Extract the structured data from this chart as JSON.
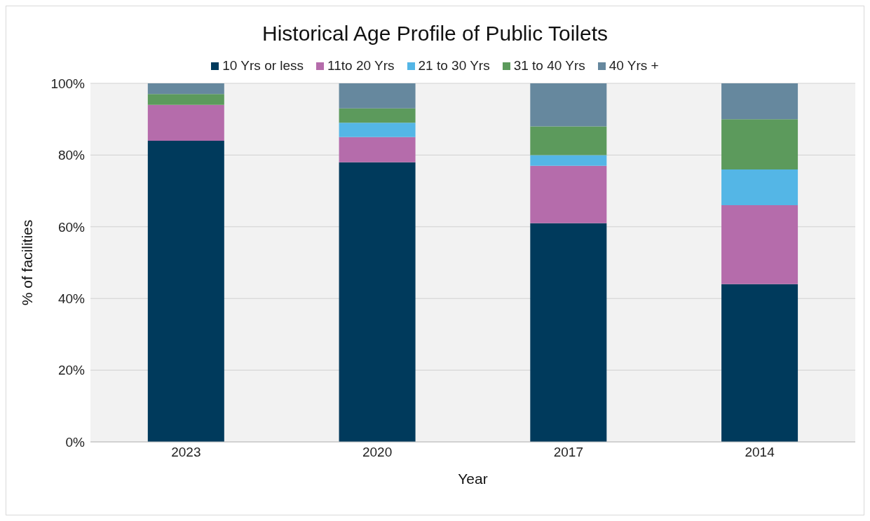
{
  "chart_data": {
    "type": "bar",
    "title": "Historical Age Profile of Public Toilets",
    "xlabel": "Year",
    "ylabel": "% of facilities",
    "categories": [
      "2023",
      "2020",
      "2017",
      "2014"
    ],
    "stacked": true,
    "series": [
      {
        "name": "10 Yrs or less",
        "color": "#003a5c",
        "values": [
          84,
          78,
          61,
          44
        ]
      },
      {
        "name": "11to 20 Yrs",
        "color": "#b56cab",
        "values": [
          10,
          7,
          16,
          22
        ]
      },
      {
        "name": "21 to 30 Yrs",
        "color": "#54b6e6",
        "values": [
          0,
          4,
          3,
          10
        ]
      },
      {
        "name": "31 to 40 Yrs",
        "color": "#5c9a5c",
        "values": [
          3,
          4,
          8,
          14
        ]
      },
      {
        "name": "40 Yrs +",
        "color": "#66889e",
        "values": [
          3,
          7,
          12,
          10
        ]
      }
    ],
    "ylim": [
      0,
      100
    ],
    "yticks": [
      {
        "value": 0,
        "label": "0%"
      },
      {
        "value": 20,
        "label": "20%"
      },
      {
        "value": 40,
        "label": "40%"
      },
      {
        "value": 60,
        "label": "60%"
      },
      {
        "value": 80,
        "label": "80%"
      },
      {
        "value": 100,
        "label": "100%"
      }
    ],
    "grid": "y",
    "legend": "top"
  }
}
